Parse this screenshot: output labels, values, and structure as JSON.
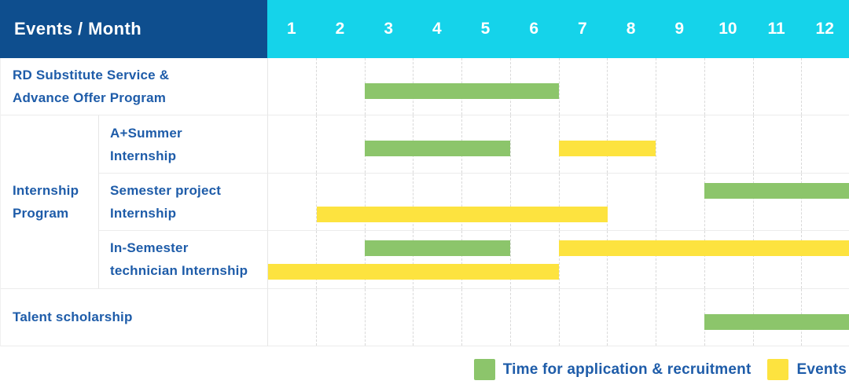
{
  "colors": {
    "navy": "#0e4e8e",
    "cyan": "#15d3ea",
    "green": "#8cc56b",
    "yellow": "#fde33f",
    "label_blue": "#1e5ca9"
  },
  "header": {
    "corner": "Events / Month",
    "months": [
      "1",
      "2",
      "3",
      "4",
      "5",
      "6",
      "7",
      "8",
      "9",
      "10",
      "11",
      "12"
    ]
  },
  "table": {
    "rows": [
      {
        "name": "rd-substitute-service",
        "lines": [
          "RD Substitute Service &",
          "Advance Offer Program"
        ],
        "span": "full"
      },
      {
        "name": "a-plus-summer-internship",
        "lines": [
          "A+Summer",
          "Internship"
        ],
        "span": "sub"
      },
      {
        "name": "semester-project-internship",
        "lines": [
          "Semester project",
          "Internship"
        ],
        "span": "sub"
      },
      {
        "name": "in-semester-technician-internship",
        "lines": [
          "In-Semester",
          "technician Internship"
        ],
        "span": "sub"
      },
      {
        "name": "talent-scholarship",
        "lines": [
          "Talent scholarship"
        ],
        "span": "full"
      }
    ],
    "group": {
      "name": "internship-program",
      "lines": [
        "Internship",
        "Program"
      ],
      "start_row": 1,
      "end_row": 3
    },
    "bars": [
      {
        "row": 0,
        "lane": "single",
        "color": "green",
        "start": 3,
        "end": 6
      },
      {
        "row": 1,
        "lane": "single",
        "color": "green",
        "start": 3,
        "end": 5
      },
      {
        "row": 1,
        "lane": "single",
        "color": "yellow",
        "start": 7,
        "end": 8
      },
      {
        "row": 2,
        "lane": "top",
        "color": "green",
        "start": 10,
        "end": 12
      },
      {
        "row": 2,
        "lane": "bottom",
        "color": "yellow",
        "start": 2,
        "end": 7
      },
      {
        "row": 3,
        "lane": "top",
        "color": "green",
        "start": 3,
        "end": 5
      },
      {
        "row": 3,
        "lane": "top",
        "color": "yellow",
        "start": 7,
        "end": 12
      },
      {
        "row": 3,
        "lane": "bottom",
        "color": "yellow",
        "start": 1,
        "end": 6
      },
      {
        "row": 4,
        "lane": "single",
        "color": "green",
        "start": 10,
        "end": 12
      }
    ]
  },
  "legend": {
    "items": [
      {
        "key": "application",
        "color": "green",
        "label": "Time for application & recruitment"
      },
      {
        "key": "events",
        "color": "yellow",
        "label": "Events"
      }
    ]
  },
  "chart_data": {
    "type": "table",
    "subtype": "gantt",
    "title": "Events / Month",
    "x_unit": "month",
    "x_ticks": [
      "1",
      "2",
      "3",
      "4",
      "5",
      "6",
      "7",
      "8",
      "9",
      "10",
      "11",
      "12"
    ],
    "x_range": [
      1,
      12
    ],
    "grid": true,
    "legend_position": "bottom-right",
    "series_meaning": {
      "green": "Time for application & recruitment",
      "yellow": "Events"
    },
    "tasks": [
      {
        "group": null,
        "name": "RD Substitute Service & Advance Offer Program",
        "application_months": [
          [
            3,
            6
          ]
        ],
        "event_months": []
      },
      {
        "group": "Internship Program",
        "name": "A+Summer Internship",
        "application_months": [
          [
            3,
            5
          ]
        ],
        "event_months": [
          [
            7,
            8
          ]
        ]
      },
      {
        "group": "Internship Program",
        "name": "Semester project Internship",
        "application_months": [
          [
            10,
            12
          ]
        ],
        "event_months": [
          [
            2,
            7
          ]
        ]
      },
      {
        "group": "Internship Program",
        "name": "In-Semester technician Internship",
        "application_months": [
          [
            3,
            5
          ]
        ],
        "event_months": [
          [
            7,
            12
          ],
          [
            1,
            6
          ]
        ]
      },
      {
        "group": null,
        "name": "Talent scholarship",
        "application_months": [
          [
            10,
            12
          ]
        ],
        "event_months": []
      }
    ]
  }
}
